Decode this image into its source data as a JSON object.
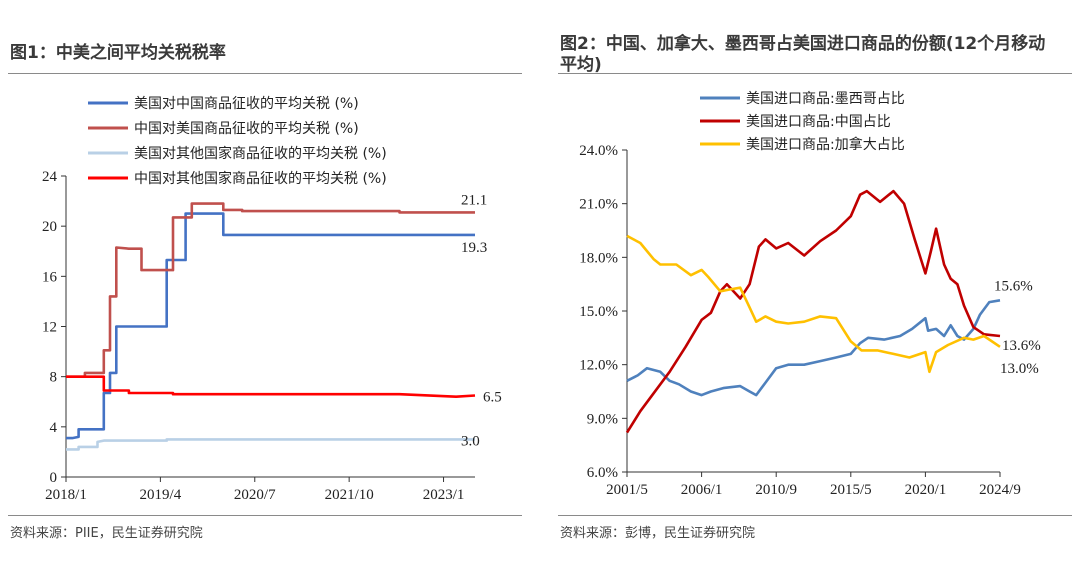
{
  "charts": [
    {
      "title": "图1：中美之间平均关税税率",
      "source": "资料来源：PIIE，民生证券研究院"
    },
    {
      "title": "图2：中国、加拿大、墨西哥占美国进口商品的份额(12个月移动平均)",
      "source": "资料来源：彭博，民生证券研究院"
    }
  ],
  "chart_data": [
    {
      "type": "line",
      "title": "图1：中美之间平均关税税率",
      "x_ticks": [
        "2018/1",
        "2019/4",
        "2020/7",
        "2021/10",
        "2023/1"
      ],
      "x_range": [
        "2018-01",
        "2023-06"
      ],
      "ylim": [
        0,
        24
      ],
      "y_ticks": [
        "0",
        "4",
        "8",
        "12",
        "16",
        "20",
        "24"
      ],
      "legend_position": "top-left",
      "grid": false,
      "series": [
        {
          "name": "美国对中国商品征收的平均关税 (%)",
          "color": "#4472c4",
          "end_label": "19.3",
          "points": [
            [
              "2018-01",
              3.1
            ],
            [
              "2018-02",
              3.1
            ],
            [
              "2018-03",
              3.2
            ],
            [
              "2018-03",
              3.8
            ],
            [
              "2018-07",
              3.8
            ],
            [
              "2018-07",
              6.7
            ],
            [
              "2018-08",
              6.7
            ],
            [
              "2018-08",
              8.3
            ],
            [
              "2018-09",
              8.3
            ],
            [
              "2018-09",
              12.0
            ],
            [
              "2019-05",
              12.0
            ],
            [
              "2019-05",
              17.3
            ],
            [
              "2019-08",
              17.3
            ],
            [
              "2019-08",
              21.0
            ],
            [
              "2020-02",
              21.0
            ],
            [
              "2020-02",
              19.3
            ],
            [
              "2023-06",
              19.3
            ]
          ]
        },
        {
          "name": "中国对美国商品征收的平均关税 (%)",
          "color": "#c0504d",
          "end_label": "21.1",
          "points": [
            [
              "2018-01",
              8.0
            ],
            [
              "2018-04",
              8.0
            ],
            [
              "2018-04",
              8.3
            ],
            [
              "2018-07",
              8.3
            ],
            [
              "2018-07",
              10.1
            ],
            [
              "2018-08",
              10.1
            ],
            [
              "2018-08",
              14.4
            ],
            [
              "2018-09",
              14.4
            ],
            [
              "2018-09",
              18.3
            ],
            [
              "2018-11",
              18.2
            ],
            [
              "2019-01",
              18.2
            ],
            [
              "2019-01",
              16.5
            ],
            [
              "2019-06",
              16.5
            ],
            [
              "2019-06",
              20.7
            ],
            [
              "2019-09",
              20.7
            ],
            [
              "2019-09",
              21.8
            ],
            [
              "2020-02",
              21.8
            ],
            [
              "2020-02",
              21.3
            ],
            [
              "2020-05",
              21.3
            ],
            [
              "2020-05",
              21.2
            ],
            [
              "2022-06",
              21.2
            ],
            [
              "2022-06",
              21.1
            ],
            [
              "2023-06",
              21.1
            ]
          ]
        },
        {
          "name": "美国对其他国家商品征收的平均关税 (%)",
          "color": "#b9d0e6",
          "end_label": "3.0",
          "points": [
            [
              "2018-01",
              2.2
            ],
            [
              "2018-03",
              2.2
            ],
            [
              "2018-03",
              2.4
            ],
            [
              "2018-06",
              2.4
            ],
            [
              "2018-06",
              2.8
            ],
            [
              "2018-07",
              2.9
            ],
            [
              "2019-05",
              2.9
            ],
            [
              "2019-05",
              3.0
            ],
            [
              "2023-06",
              3.0
            ]
          ]
        },
        {
          "name": "中国对其他国家商品征收的平均关税 (%)",
          "color": "#ff0000",
          "end_label": "6.5",
          "points": [
            [
              "2018-01",
              8.0
            ],
            [
              "2018-07",
              8.0
            ],
            [
              "2018-07",
              6.9
            ],
            [
              "2018-11",
              6.9
            ],
            [
              "2018-11",
              6.7
            ],
            [
              "2019-06",
              6.7
            ],
            [
              "2019-06",
              6.6
            ],
            [
              "2022-06",
              6.6
            ],
            [
              "2023-03",
              6.4
            ],
            [
              "2023-06",
              6.5
            ]
          ]
        }
      ]
    },
    {
      "type": "line",
      "title": "图2：中国、加拿大、墨西哥占美国进口商品的份额(12个月移动平均)",
      "x_ticks": [
        "2001/5",
        "2006/1",
        "2010/9",
        "2015/5",
        "2020/1",
        "2024/9"
      ],
      "x_range": [
        "2001-05",
        "2024-09"
      ],
      "ylim": [
        6.0,
        24.0
      ],
      "y_ticks": [
        "6.0%",
        "9.0%",
        "12.0%",
        "15.0%",
        "18.0%",
        "21.0%",
        "24.0%"
      ],
      "legend_position": "top-left",
      "grid": false,
      "series": [
        {
          "name": "美国进口商品:墨西哥占比",
          "color": "#4f81bd",
          "end_label": "15.6%",
          "points": [
            [
              "2001-05",
              11.1
            ],
            [
              "2002-01",
              11.4
            ],
            [
              "2002-08",
              11.8
            ],
            [
              "2003-06",
              11.6
            ],
            [
              "2004-01",
              11.1
            ],
            [
              "2004-08",
              10.9
            ],
            [
              "2005-05",
              10.5
            ],
            [
              "2006-01",
              10.3
            ],
            [
              "2006-08",
              10.5
            ],
            [
              "2007-06",
              10.7
            ],
            [
              "2008-06",
              10.8
            ],
            [
              "2009-01",
              10.5
            ],
            [
              "2009-06",
              10.3
            ],
            [
              "2010-01",
              11.0
            ],
            [
              "2010-09",
              11.8
            ],
            [
              "2011-06",
              12.0
            ],
            [
              "2012-06",
              12.0
            ],
            [
              "2013-06",
              12.2
            ],
            [
              "2014-06",
              12.4
            ],
            [
              "2015-05",
              12.6
            ],
            [
              "2015-12",
              13.2
            ],
            [
              "2016-06",
              13.5
            ],
            [
              "2017-06",
              13.4
            ],
            [
              "2018-06",
              13.6
            ],
            [
              "2019-03",
              14.0
            ],
            [
              "2020-01",
              14.6
            ],
            [
              "2020-03",
              13.9
            ],
            [
              "2020-09",
              14.0
            ],
            [
              "2021-03",
              13.6
            ],
            [
              "2021-08",
              14.2
            ],
            [
              "2022-01",
              13.6
            ],
            [
              "2022-06",
              13.4
            ],
            [
              "2023-01",
              14.0
            ],
            [
              "2023-06",
              14.8
            ],
            [
              "2024-01",
              15.5
            ],
            [
              "2024-09",
              15.6
            ]
          ]
        },
        {
          "name": "美国进口商品:中国占比",
          "color": "#c00000",
          "end_label": "13.6%",
          "points": [
            [
              "2001-05",
              8.2
            ],
            [
              "2002-03",
              9.4
            ],
            [
              "2003-01",
              10.4
            ],
            [
              "2004-01",
              11.6
            ],
            [
              "2005-01",
              13.0
            ],
            [
              "2006-01",
              14.5
            ],
            [
              "2006-08",
              14.9
            ],
            [
              "2007-03",
              16.1
            ],
            [
              "2007-08",
              16.5
            ],
            [
              "2008-06",
              15.7
            ],
            [
              "2009-01",
              16.5
            ],
            [
              "2009-08",
              18.6
            ],
            [
              "2010-01",
              19.0
            ],
            [
              "2010-09",
              18.5
            ],
            [
              "2011-06",
              18.8
            ],
            [
              "2012-06",
              18.1
            ],
            [
              "2013-06",
              18.9
            ],
            [
              "2014-06",
              19.5
            ],
            [
              "2015-05",
              20.3
            ],
            [
              "2015-12",
              21.5
            ],
            [
              "2016-05",
              21.7
            ],
            [
              "2017-03",
              21.1
            ],
            [
              "2018-01",
              21.7
            ],
            [
              "2018-09",
              21.0
            ],
            [
              "2019-05",
              19.0
            ],
            [
              "2020-01",
              17.1
            ],
            [
              "2020-05",
              18.3
            ],
            [
              "2020-09",
              19.6
            ],
            [
              "2021-03",
              17.6
            ],
            [
              "2021-08",
              16.8
            ],
            [
              "2022-01",
              16.5
            ],
            [
              "2022-06",
              15.3
            ],
            [
              "2023-01",
              14.1
            ],
            [
              "2023-09",
              13.7
            ],
            [
              "2024-09",
              13.6
            ]
          ]
        },
        {
          "name": "美国进口商品:加拿大占比",
          "color": "#ffc000",
          "end_label": "13.0%",
          "points": [
            [
              "2001-05",
              19.2
            ],
            [
              "2002-03",
              18.8
            ],
            [
              "2003-01",
              17.9
            ],
            [
              "2003-06",
              17.6
            ],
            [
              "2004-06",
              17.6
            ],
            [
              "2005-05",
              17.0
            ],
            [
              "2006-01",
              17.3
            ],
            [
              "2006-06",
              16.9
            ],
            [
              "2007-03",
              16.1
            ],
            [
              "2007-10",
              16.2
            ],
            [
              "2008-06",
              16.3
            ],
            [
              "2009-01",
              15.2
            ],
            [
              "2009-06",
              14.4
            ],
            [
              "2010-01",
              14.7
            ],
            [
              "2010-09",
              14.4
            ],
            [
              "2011-06",
              14.3
            ],
            [
              "2012-06",
              14.4
            ],
            [
              "2013-06",
              14.7
            ],
            [
              "2014-06",
              14.6
            ],
            [
              "2015-05",
              13.3
            ],
            [
              "2016-01",
              12.8
            ],
            [
              "2017-01",
              12.8
            ],
            [
              "2018-01",
              12.6
            ],
            [
              "2019-01",
              12.4
            ],
            [
              "2020-01",
              12.7
            ],
            [
              "2020-04",
              11.6
            ],
            [
              "2020-09",
              12.7
            ],
            [
              "2021-06",
              13.1
            ],
            [
              "2022-06",
              13.5
            ],
            [
              "2023-01",
              13.4
            ],
            [
              "2023-09",
              13.6
            ],
            [
              "2024-09",
              13.0
            ]
          ]
        }
      ]
    }
  ]
}
